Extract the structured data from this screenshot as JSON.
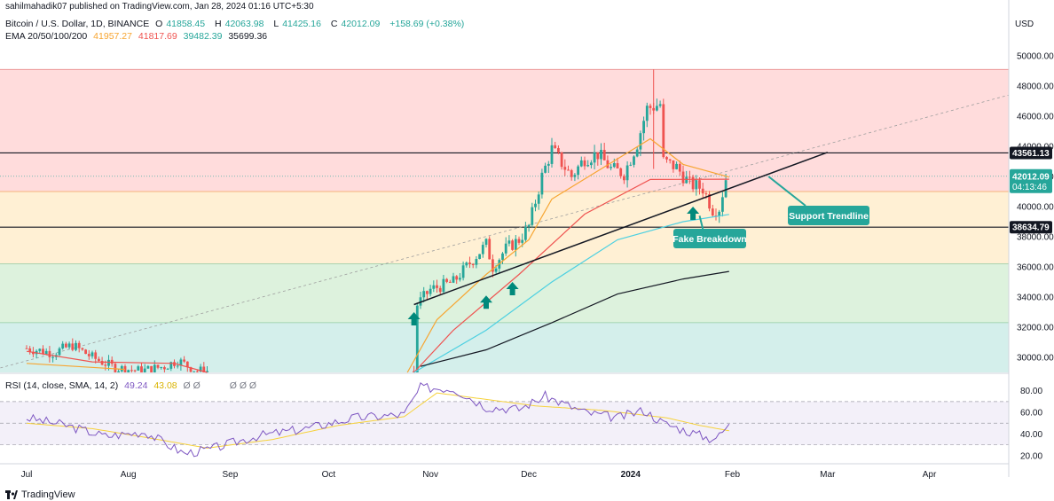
{
  "header": {
    "published": "sahilmahadik07 published on TradingView.com, Jan 28, 2024 01:16 UTC+5:30",
    "symbol": "Bitcoin / U.S. Dollar, 1D, BINANCE",
    "o_label": "O",
    "o_val": "41858.45",
    "h_label": "H",
    "h_val": "42063.98",
    "l_label": "L",
    "l_val": "41425.16",
    "c_label": "C",
    "c_val": "42012.09",
    "change": "+158.69 (+0.38%)",
    "ema_label": "EMA 20/50/100/200",
    "ema20": "41957.27",
    "ema50": "41817.69",
    "ema100": "39482.39",
    "ema200": "35699.36"
  },
  "rsi_header": {
    "label": "RSI (14, close, SMA, 14, 2)",
    "rsi": "49.24",
    "sma": "43.08",
    "dash": "Ø Ø",
    "extra": "Ø Ø Ø"
  },
  "currency": "USD",
  "footer": {
    "brand": "TradingView"
  },
  "annotations": {
    "support": "Support Trendline",
    "fake": "Fake Breakdown"
  },
  "price_tags": {
    "upper": "43561.13",
    "current": "42012.09",
    "countdown": "04:13:46",
    "lower": "38634.79"
  },
  "colors": {
    "up": "#26a69a",
    "down": "#ef5350",
    "ema20": "#f7a531",
    "ema50": "#ef5350",
    "ema100": "#4dd0e1",
    "ema200": "#131722",
    "callout": "#26a69a",
    "rsi": "#7e57c2",
    "rsi_sma": "#f6d23c"
  },
  "chart_data": [
    {
      "type": "candlestick",
      "title": "Bitcoin / U.S. Dollar, 1D, BINANCE",
      "ylabel": "USD",
      "ylim": [
        29000,
        51000
      ],
      "y_ticks": [
        30000,
        32000,
        34000,
        36000,
        38000,
        40000,
        42000,
        44000,
        46000,
        48000,
        50000
      ],
      "x_ticks": [
        "Jul",
        "Aug",
        "Sep",
        "Oct",
        "Nov",
        "Dec",
        "2024",
        "Feb",
        "Mar",
        "Apr"
      ],
      "x_tick_days": [
        0,
        31,
        62,
        92,
        123,
        153,
        184,
        215,
        244,
        275
      ],
      "horizontal_levels": [
        43561.13,
        38634.79
      ],
      "zones": [
        {
          "from": 41000,
          "to": 49100,
          "color": "#ffdcdc"
        },
        {
          "from": 36200,
          "to": 41000,
          "color": "#fff0d4"
        },
        {
          "from": 32300,
          "to": 36200,
          "color": "#ddf2dd"
        },
        {
          "from": 29000,
          "to": 32300,
          "color": "#d4efeb"
        }
      ],
      "support_trendline": {
        "from": {
          "day": 118,
          "price": 33500
        },
        "to": {
          "day": 244,
          "price": 43600
        }
      },
      "last_price": 42012.09,
      "close_series": [
        {
          "day": 0,
          "close": 30600
        },
        {
          "day": 8,
          "close": 30300
        },
        {
          "day": 14,
          "close": 30800
        },
        {
          "day": 20,
          "close": 30000
        },
        {
          "day": 27,
          "close": 29300
        },
        {
          "day": 35,
          "close": 29100
        },
        {
          "day": 42,
          "close": 29400
        },
        {
          "day": 46,
          "close": 29800
        },
        {
          "day": 52,
          "close": 29100
        },
        {
          "day": 118,
          "close": 29000
        },
        {
          "day": 119,
          "close": 33500
        },
        {
          "day": 123,
          "close": 34500
        },
        {
          "day": 130,
          "close": 35000
        },
        {
          "day": 136,
          "close": 36500
        },
        {
          "day": 140,
          "close": 37500
        },
        {
          "day": 142,
          "close": 36000
        },
        {
          "day": 146,
          "close": 37200
        },
        {
          "day": 150,
          "close": 37800
        },
        {
          "day": 153,
          "close": 38700
        },
        {
          "day": 157,
          "close": 42000
        },
        {
          "day": 160,
          "close": 43800
        },
        {
          "day": 166,
          "close": 42000
        },
        {
          "day": 170,
          "close": 43200
        },
        {
          "day": 174,
          "close": 43500
        },
        {
          "day": 178,
          "close": 42500
        },
        {
          "day": 182,
          "close": 42200
        },
        {
          "day": 186,
          "close": 44200
        },
        {
          "day": 189,
          "close": 46500
        },
        {
          "day": 193,
          "close": 46800
        },
        {
          "day": 194,
          "close": 43000
        },
        {
          "day": 198,
          "close": 42600
        },
        {
          "day": 202,
          "close": 41500
        },
        {
          "day": 206,
          "close": 41200
        },
        {
          "day": 209,
          "close": 39800
        },
        {
          "day": 211,
          "close": 39900
        },
        {
          "day": 213,
          "close": 41858
        },
        {
          "day": 214,
          "close": 42012
        }
      ],
      "series": [
        {
          "name": "EMA 20",
          "last": 41957.27
        },
        {
          "name": "EMA 50",
          "last": 41817.69
        },
        {
          "name": "EMA 100",
          "last": 39482.39
        },
        {
          "name": "EMA 200",
          "last": 35699.36
        }
      ]
    },
    {
      "type": "line",
      "title": "RSI (14, close, SMA, 14, 2)",
      "ylim": [
        15,
        92
      ],
      "y_ticks": [
        20,
        40,
        60,
        80
      ],
      "bands": [
        30,
        50,
        70
      ],
      "series": [
        {
          "name": "RSI",
          "values": [
            {
              "day": 0,
              "value": 55
            },
            {
              "day": 12,
              "value": 48
            },
            {
              "day": 24,
              "value": 38
            },
            {
              "day": 36,
              "value": 42
            },
            {
              "day": 48,
              "value": 22
            },
            {
              "day": 56,
              "value": 26
            },
            {
              "day": 70,
              "value": 38
            },
            {
              "day": 85,
              "value": 45
            },
            {
              "day": 100,
              "value": 55
            },
            {
              "day": 115,
              "value": 58
            },
            {
              "day": 120,
              "value": 83
            },
            {
              "day": 130,
              "value": 82
            },
            {
              "day": 140,
              "value": 65
            },
            {
              "day": 150,
              "value": 63
            },
            {
              "day": 158,
              "value": 75
            },
            {
              "day": 170,
              "value": 60
            },
            {
              "day": 180,
              "value": 55
            },
            {
              "day": 188,
              "value": 62
            },
            {
              "day": 194,
              "value": 50
            },
            {
              "day": 200,
              "value": 44
            },
            {
              "day": 208,
              "value": 36
            },
            {
              "day": 211,
              "value": 38
            },
            {
              "day": 214,
              "value": 49.24
            }
          ]
        },
        {
          "name": "RSI SMA",
          "values": [
            {
              "day": 0,
              "value": 50
            },
            {
              "day": 20,
              "value": 45
            },
            {
              "day": 40,
              "value": 35
            },
            {
              "day": 55,
              "value": 27
            },
            {
              "day": 75,
              "value": 35
            },
            {
              "day": 95,
              "value": 48
            },
            {
              "day": 115,
              "value": 56
            },
            {
              "day": 125,
              "value": 78
            },
            {
              "day": 140,
              "value": 72
            },
            {
              "day": 155,
              "value": 66
            },
            {
              "day": 175,
              "value": 62
            },
            {
              "day": 195,
              "value": 55
            },
            {
              "day": 205,
              "value": 48
            },
            {
              "day": 214,
              "value": 43.08
            }
          ]
        }
      ]
    }
  ]
}
